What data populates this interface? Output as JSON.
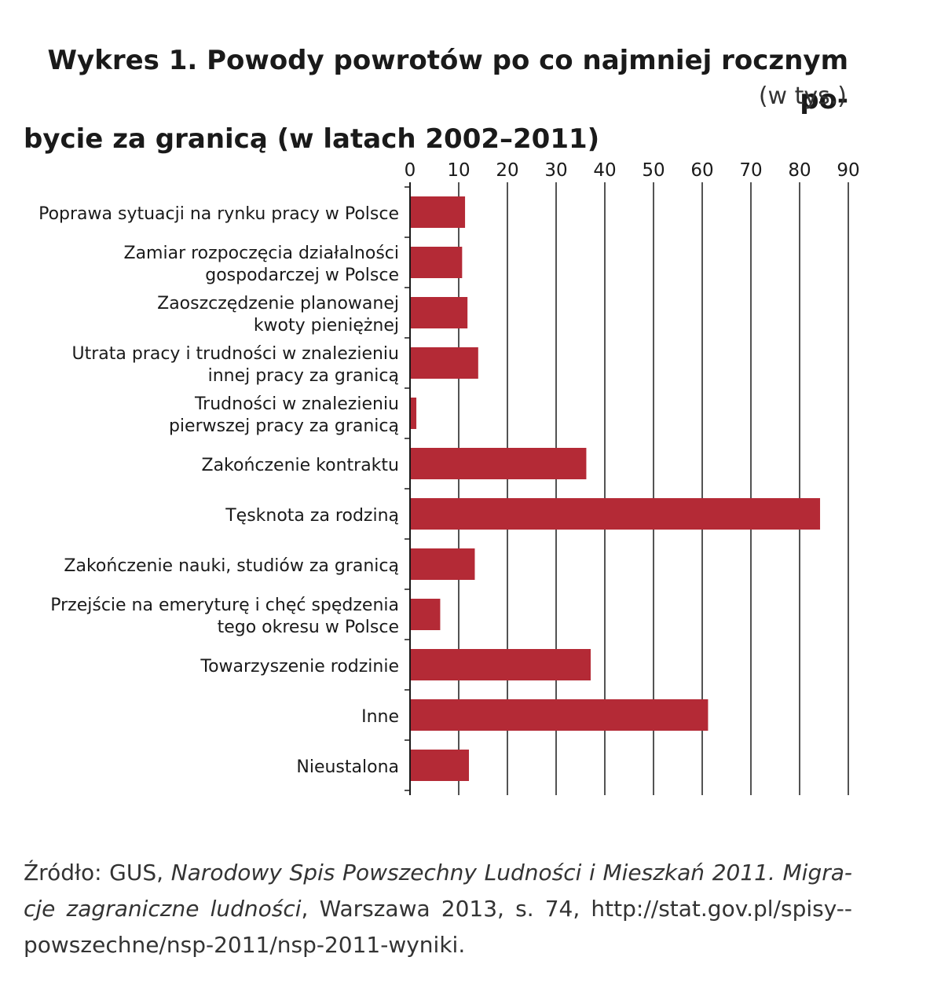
{
  "title": {
    "line1": "Wykres 1. Powody powrotów po co najmniej rocznym po-",
    "line2": "bycie za granicą (w latach 2002–2011)",
    "unit": "(w tys.)"
  },
  "chart_data": {
    "type": "bar",
    "orientation": "horizontal",
    "categories": [
      [
        "Poprawa sytuacji na rynku pracy w Polsce"
      ],
      [
        "Zamiar rozpoczęcia działalności",
        "gospodarczej w Polsce"
      ],
      [
        "Zaoszczędzenie planowanej",
        "kwoty pieniężnej"
      ],
      [
        "Utrata pracy i trudności w znalezieniu",
        "innej pracy za granicą"
      ],
      [
        "Trudności w znalezieniu",
        "pierwszej pracy za granicą"
      ],
      [
        "Zakończenie kontraktu"
      ],
      [
        "Tęsknota za rodziną"
      ],
      [
        "Zakończenie nauki, studiów za granicą"
      ],
      [
        "Przejście na emeryturę i chęć spędzenia",
        "tego okresu w Polsce"
      ],
      [
        "Towarzyszenie rodzinie"
      ],
      [
        "Inne"
      ],
      [
        "Nieustalona"
      ]
    ],
    "values": [
      11.3,
      10.7,
      11.8,
      14.0,
      1.3,
      36.2,
      84.2,
      13.3,
      6.2,
      37.1,
      61.2,
      12.1
    ],
    "xlim": [
      0,
      90
    ],
    "ticks": [
      "0",
      "10",
      "20",
      "30",
      "40",
      "50",
      "60",
      "70",
      "80",
      "90"
    ],
    "axis_position": "top",
    "grid": true,
    "bar_color": "#b42a36",
    "grid_color": "#1a1a1a"
  },
  "source": {
    "prefix": "Źródło: GUS, ",
    "italic1": "Narodowy Spis Powszechny Ludności i Mieszkań 2011. Migra-cje zagraniczne ludności",
    "rest": ", Warszawa 2013, s. 74, http://stat.gov.pl/spisy--powszechne/nsp-2011/nsp-2011-wyniki."
  }
}
